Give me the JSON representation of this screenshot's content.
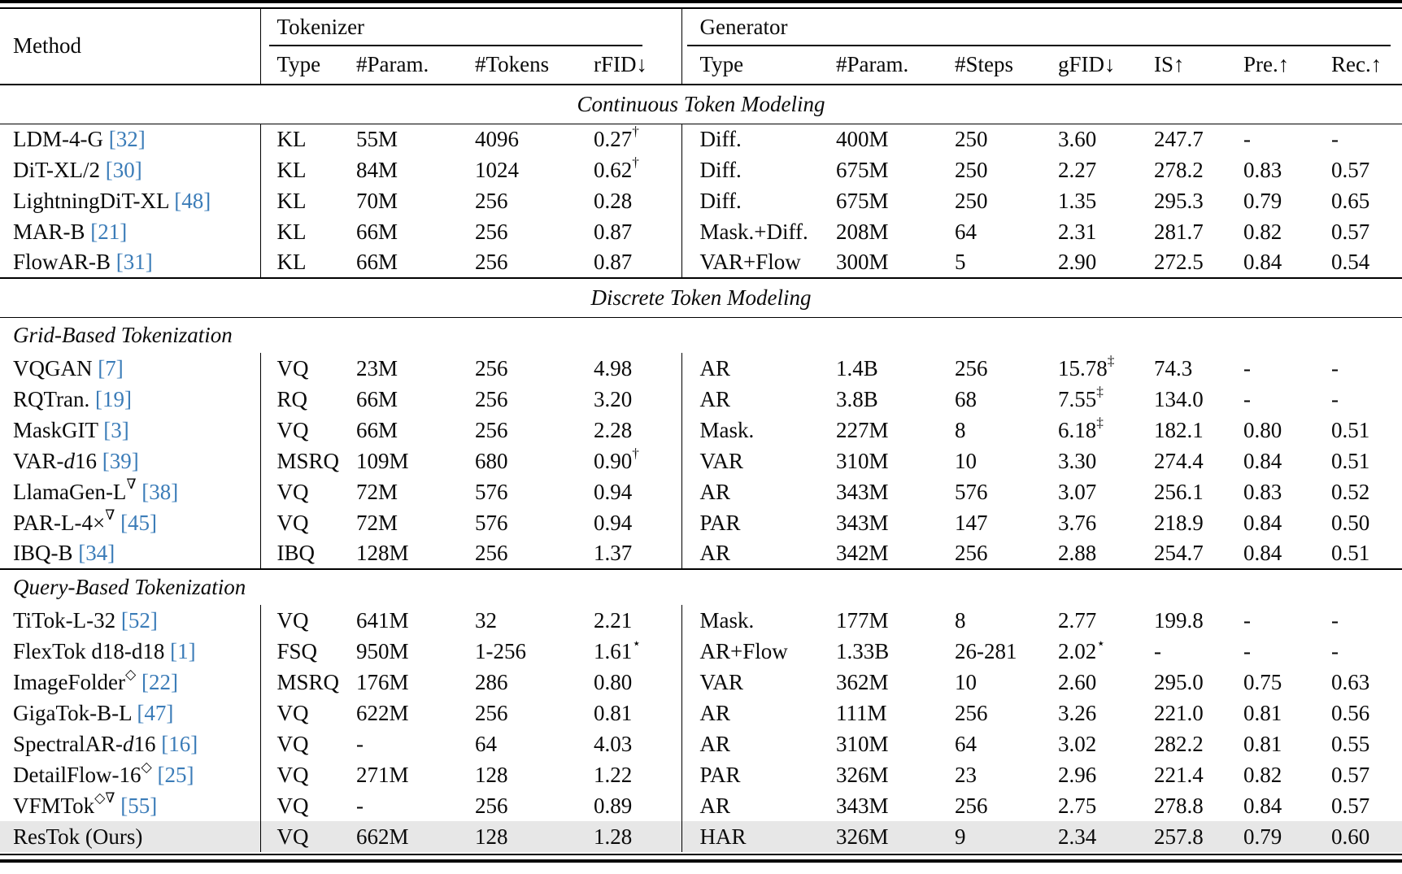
{
  "table": {
    "colors": {
      "citation_blue": "#3b7cb8",
      "highlight_row": "#e7e7e7",
      "text": "#0a0a0a"
    },
    "header": {
      "method": "Method",
      "groups": [
        {
          "label": "Tokenizer"
        },
        {
          "label": "Generator"
        }
      ],
      "tokenizer_cols": [
        "Type",
        "#Param.",
        "#Tokens",
        "rFID↓"
      ],
      "generator_cols": [
        "Type",
        "#Param.",
        "#Steps",
        "gFID↓",
        "IS↑",
        "Pre.↑",
        "Rec.↑"
      ]
    },
    "sections": [
      {
        "label": "Continuous Token Modeling",
        "rows": [
          {
            "method": "LDM-4-G [32]",
            "cells": [
              "KL",
              "55M",
              "4096",
              "0.27^{†}",
              "Diff.",
              "400M",
              "250",
              "3.60",
              "247.7",
              "-",
              "-"
            ],
            "highlight": false
          },
          {
            "method": "DiT-XL/2 [30]",
            "cells": [
              "KL",
              "84M",
              "1024",
              "0.62^{†}",
              "Diff.",
              "675M",
              "250",
              "2.27",
              "278.2",
              "0.83",
              "0.57"
            ],
            "highlight": false
          },
          {
            "method": "LightningDiT-XL [48]",
            "cells": [
              "KL",
              "70M",
              "256",
              "0.28",
              "Diff.",
              "675M",
              "250",
              "1.35",
              "295.3",
              "0.79",
              "0.65"
            ],
            "highlight": false
          },
          {
            "method": "MAR-B [21]",
            "cells": [
              "KL",
              "66M",
              "256",
              "0.87",
              "Mask.+Diff.",
              "208M",
              "64",
              "2.31",
              "281.7",
              "0.82",
              "0.57"
            ],
            "highlight": false
          },
          {
            "method": "FlowAR-B [31]",
            "cells": [
              "KL",
              "66M",
              "256",
              "0.87",
              "VAR+Flow",
              "300M",
              "5",
              "2.90",
              "272.5",
              "0.84",
              "0.54"
            ],
            "highlight": false
          }
        ]
      },
      {
        "label": "Discrete Token Modeling",
        "subsections": [
          {
            "label": "Grid-Based Tokenization",
            "ruled_top": false,
            "rows": [
              {
                "method": "VQGAN [7]",
                "cells": [
                  "VQ",
                  "23M",
                  "256",
                  "4.98",
                  "AR",
                  "1.4B",
                  "256",
                  "15.78^{‡}",
                  "74.3",
                  "-",
                  "-"
                ],
                "highlight": false
              },
              {
                "method": "RQTran. [19]",
                "cells": [
                  "RQ",
                  "66M",
                  "256",
                  "3.20",
                  "AR",
                  "3.8B",
                  "68",
                  "7.55^{‡}",
                  "134.0",
                  "-",
                  "-"
                ],
                "highlight": false
              },
              {
                "method": "MaskGIT [3]",
                "cells": [
                  "VQ",
                  "66M",
                  "256",
                  "2.28",
                  "Mask.",
                  "227M",
                  "8",
                  "6.18^{‡}",
                  "182.1",
                  "0.80",
                  "0.51"
                ],
                "highlight": false
              },
              {
                "method": "VAR-*d*16 [39]",
                "cells": [
                  "MSRQ",
                  "109M",
                  "680",
                  "0.90^{†}",
                  "VAR",
                  "310M",
                  "10",
                  "3.30",
                  "274.4",
                  "0.84",
                  "0.51"
                ],
                "highlight": false
              },
              {
                "method": "LlamaGen-L^{∇} [38]",
                "cells": [
                  "VQ",
                  "72M",
                  "576",
                  "0.94",
                  "AR",
                  "343M",
                  "576",
                  "3.07",
                  "256.1",
                  "0.83",
                  "0.52"
                ],
                "highlight": false
              },
              {
                "method": "PAR-L-4×^{∇} [45]",
                "cells": [
                  "VQ",
                  "72M",
                  "576",
                  "0.94",
                  "PAR",
                  "343M",
                  "147",
                  "3.76",
                  "218.9",
                  "0.84",
                  "0.50"
                ],
                "highlight": false
              },
              {
                "method": "IBQ-B [34]",
                "cells": [
                  "IBQ",
                  "128M",
                  "256",
                  "1.37",
                  "AR",
                  "342M",
                  "256",
                  "2.88",
                  "254.7",
                  "0.84",
                  "0.51"
                ],
                "highlight": false
              }
            ]
          },
          {
            "label": "Query-Based Tokenization",
            "ruled_top": true,
            "rows": [
              {
                "method": "TiTok-L-32 [52]",
                "cells": [
                  "VQ",
                  "641M",
                  "32",
                  "2.21",
                  "Mask.",
                  "177M",
                  "8",
                  "2.77",
                  "199.8",
                  "-",
                  "-"
                ],
                "highlight": false
              },
              {
                "method": "FlexTok d18-d18 [1]",
                "cells": [
                  "FSQ",
                  "950M",
                  "1-256",
                  "1.61^{⋆}",
                  "AR+Flow",
                  "1.33B",
                  "26-281",
                  "2.02^{⋆}",
                  "-",
                  "-",
                  "-"
                ],
                "highlight": false
              },
              {
                "method": "ImageFolder^{◇} [22]",
                "cells": [
                  "MSRQ",
                  "176M",
                  "286",
                  "0.80",
                  "VAR",
                  "362M",
                  "10",
                  "2.60",
                  "295.0",
                  "0.75",
                  "0.63"
                ],
                "highlight": false
              },
              {
                "method": "GigaTok-B-L [47]",
                "cells": [
                  "VQ",
                  "622M",
                  "256",
                  "0.81",
                  "AR",
                  "111M",
                  "256",
                  "3.26",
                  "221.0",
                  "0.81",
                  "0.56"
                ],
                "highlight": false
              },
              {
                "method": "SpectralAR-*d*16 [16]",
                "cells": [
                  "VQ",
                  "-",
                  "64",
                  "4.03",
                  "AR",
                  "310M",
                  "64",
                  "3.02",
                  "282.2",
                  "0.81",
                  "0.55"
                ],
                "highlight": false
              },
              {
                "method": "DetailFlow-16^{◇} [25]",
                "cells": [
                  "VQ",
                  "271M",
                  "128",
                  "1.22",
                  "PAR",
                  "326M",
                  "23",
                  "2.96",
                  "221.4",
                  "0.82",
                  "0.57"
                ],
                "highlight": false
              },
              {
                "method": "VFMTok^{◇∇} [55]",
                "cells": [
                  "VQ",
                  "-",
                  "256",
                  "0.89",
                  "AR",
                  "343M",
                  "256",
                  "2.75",
                  "278.8",
                  "0.84",
                  "0.57"
                ],
                "highlight": false
              },
              {
                "method": "ResTok (Ours)",
                "cells": [
                  "VQ",
                  "662M",
                  "128",
                  "1.28",
                  "HAR",
                  "326M",
                  "9",
                  "2.34",
                  "257.8",
                  "0.79",
                  "0.60"
                ],
                "highlight": true
              }
            ]
          }
        ]
      }
    ]
  }
}
